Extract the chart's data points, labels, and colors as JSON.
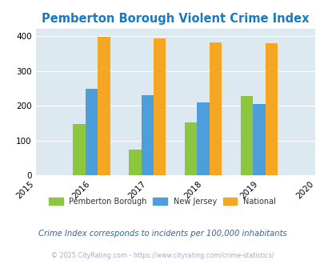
{
  "title": "Pemberton Borough Violent Crime Index",
  "years": [
    2015,
    2016,
    2017,
    2018,
    2019,
    2020
  ],
  "data_years": [
    2016,
    2017,
    2018,
    2019
  ],
  "pemberton": [
    148,
    75,
    152,
    228
  ],
  "new_jersey": [
    248,
    230,
    210,
    206
  ],
  "national": [
    398,
    393,
    381,
    379
  ],
  "bar_colors": {
    "pemberton": "#8dc63f",
    "new_jersey": "#4d9fdb",
    "national": "#f5a623"
  },
  "ylim": [
    0,
    420
  ],
  "yticks": [
    0,
    100,
    200,
    300,
    400
  ],
  "background_color": "#dce9f0",
  "title_color": "#1a7abf",
  "subtitle": "Crime Index corresponds to incidents per 100,000 inhabitants",
  "subtitle_color": "#336699",
  "footer": "© 2025 CityRating.com - https://www.cityrating.com/crime-statistics/",
  "footer_color": "#aaaacc",
  "legend_labels": [
    "Pemberton Borough",
    "New Jersey",
    "National"
  ],
  "bar_width": 0.22
}
